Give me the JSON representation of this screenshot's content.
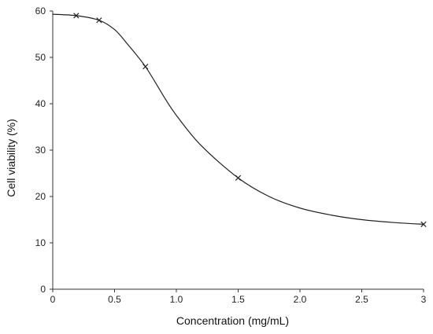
{
  "chart_data": {
    "type": "line",
    "title": "",
    "xlabel": "Concentration (mg/mL)",
    "ylabel": "Cell viability (%)",
    "xlim": [
      0,
      3
    ],
    "ylim": [
      0,
      60
    ],
    "xticks": [
      {
        "value": 0,
        "label": "0"
      },
      {
        "value": 0.5,
        "label": "0.5"
      },
      {
        "value": 1.0,
        "label": "1.0"
      },
      {
        "value": 1.5,
        "label": "1.5"
      },
      {
        "value": 2.0,
        "label": "2.0"
      },
      {
        "value": 2.5,
        "label": "2.5"
      },
      {
        "value": 3,
        "label": "3"
      }
    ],
    "yticks": [
      {
        "value": 0,
        "label": "0"
      },
      {
        "value": 10,
        "label": "10"
      },
      {
        "value": 20,
        "label": "20"
      },
      {
        "value": 30,
        "label": "30"
      },
      {
        "value": 40,
        "label": "40"
      },
      {
        "value": 50,
        "label": "50"
      },
      {
        "value": 60,
        "label": "60"
      }
    ],
    "grid": false,
    "marker": "x",
    "line_color": "#222222",
    "series": [
      {
        "points": [
          {
            "x": 0.19,
            "y": 59.0
          },
          {
            "x": 0.375,
            "y": 58.0
          },
          {
            "x": 0.75,
            "y": 48.0
          },
          {
            "x": 1.5,
            "y": 24.0
          },
          {
            "x": 3.0,
            "y": 14.0
          }
        ],
        "curve": [
          {
            "x": 0,
            "y": 59.3
          },
          {
            "x": 0.19,
            "y": 59.0
          },
          {
            "x": 0.375,
            "y": 58.0
          },
          {
            "x": 0.5,
            "y": 56.0
          },
          {
            "x": 0.6,
            "y": 53.0
          },
          {
            "x": 0.75,
            "y": 48.0
          },
          {
            "x": 0.9,
            "y": 41.5
          },
          {
            "x": 1.0,
            "y": 37.5
          },
          {
            "x": 1.2,
            "y": 31.0
          },
          {
            "x": 1.5,
            "y": 24.0
          },
          {
            "x": 1.75,
            "y": 20.0
          },
          {
            "x": 2.0,
            "y": 17.5
          },
          {
            "x": 2.25,
            "y": 16.0
          },
          {
            "x": 2.5,
            "y": 15.0
          },
          {
            "x": 2.75,
            "y": 14.4
          },
          {
            "x": 3.0,
            "y": 14.0
          }
        ]
      }
    ]
  }
}
